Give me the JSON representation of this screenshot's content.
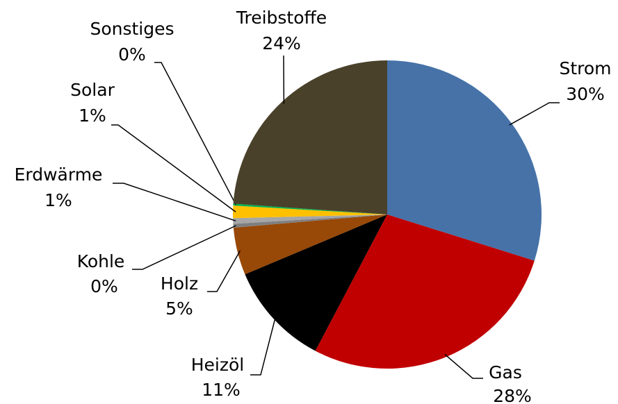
{
  "chart_data": {
    "type": "pie",
    "categories": [
      "Strom",
      "Gas",
      "Heizöl",
      "Holz",
      "Kohle",
      "Erdwärme",
      "Solar",
      "Sonstiges",
      "Treibstoffe"
    ],
    "values": [
      30,
      28,
      11,
      5,
      0.4,
      0.6,
      1.3,
      0.2,
      24
    ],
    "value_labels": [
      "30%",
      "28%",
      "11%",
      "5%",
      "0%",
      "1%",
      "1%",
      "0%",
      "24%"
    ],
    "colors": [
      "#4672a8",
      "#c00000",
      "#000000",
      "#984807",
      "#7f7f7f",
      "#a6a6a6",
      "#ffc000",
      "#00b050",
      "#4a412a"
    ]
  }
}
